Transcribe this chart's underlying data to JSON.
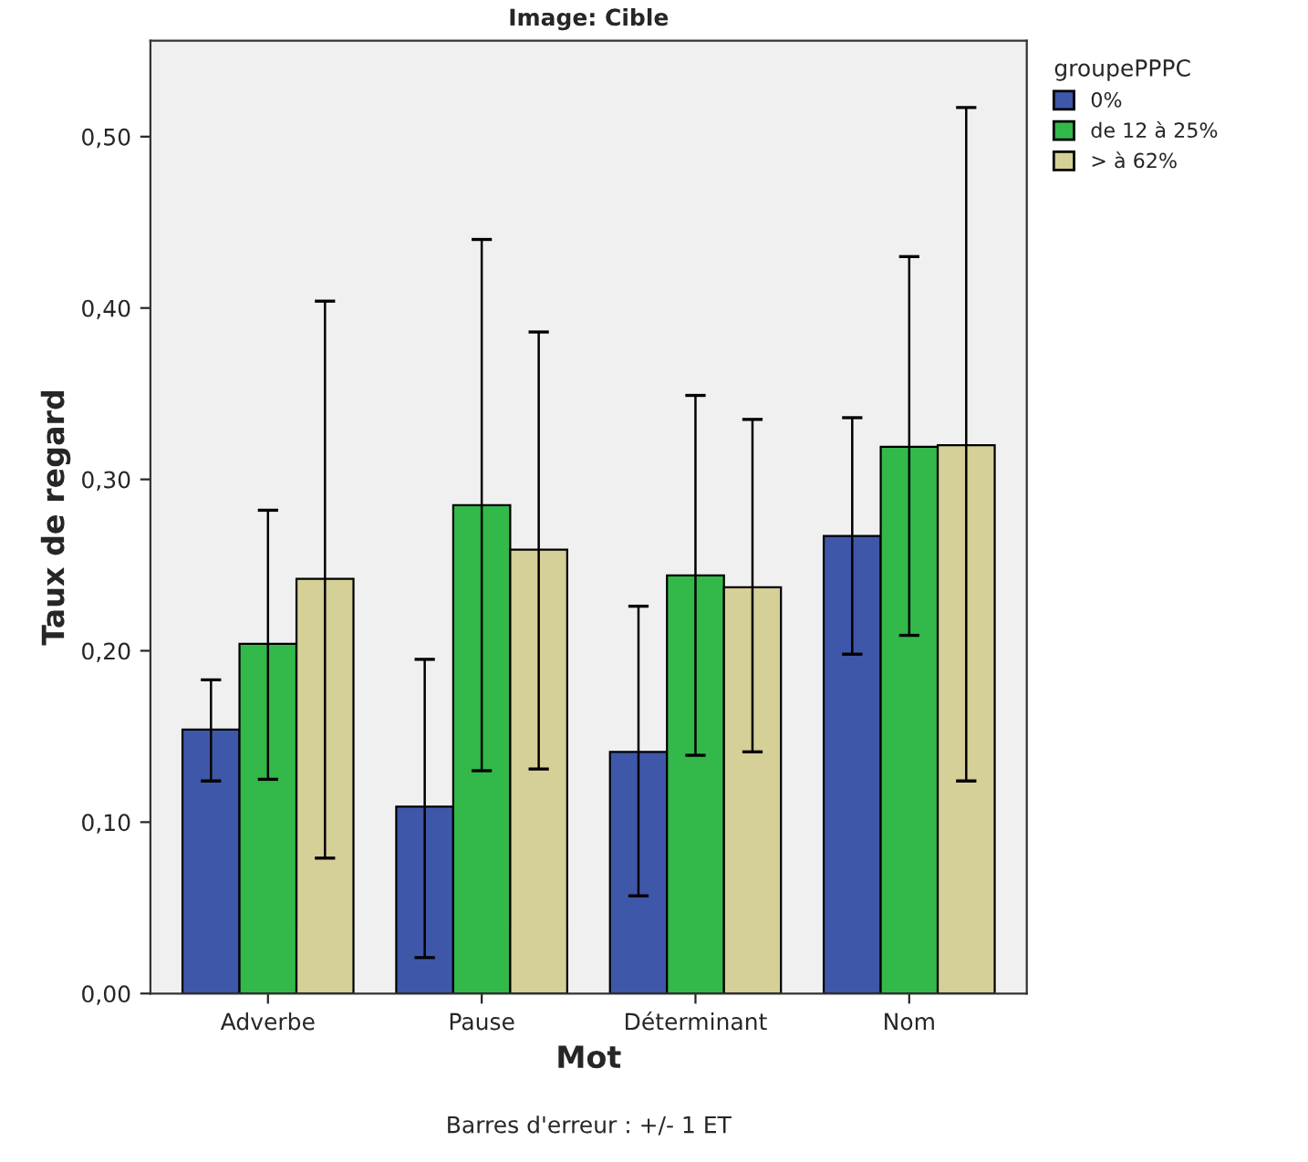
{
  "chart_data": {
    "type": "bar",
    "title": "Image: Cible",
    "xlabel": "Mot",
    "ylabel": "Taux de regard",
    "legend_title": "groupePPPC",
    "categories": [
      "Adverbe",
      "Pause",
      "Déterminant",
      "Nom"
    ],
    "series": [
      {
        "name": "0%",
        "color": "#3f57a8",
        "values": [
          0.154,
          0.109,
          0.141,
          0.267
        ],
        "errors": [
          [
            0.124,
            0.183
          ],
          [
            0.021,
            0.195
          ],
          [
            0.057,
            0.226
          ],
          [
            0.198,
            0.336
          ]
        ]
      },
      {
        "name": "de 12 à 25%",
        "color": "#33b84a",
        "values": [
          0.204,
          0.285,
          0.244,
          0.319
        ],
        "errors": [
          [
            0.125,
            0.282
          ],
          [
            0.13,
            0.44
          ],
          [
            0.139,
            0.349
          ],
          [
            0.209,
            0.43
          ]
        ]
      },
      {
        "name": "> à 62%",
        "color": "#d5cf98",
        "values": [
          0.242,
          0.259,
          0.237,
          0.32
        ],
        "errors": [
          [
            0.079,
            0.404
          ],
          [
            0.131,
            0.386
          ],
          [
            0.141,
            0.335
          ],
          [
            0.124,
            0.517
          ]
        ]
      }
    ],
    "ylim": [
      0,
      0.556
    ],
    "yticks": [
      {
        "value": 0,
        "label": "0,00"
      },
      {
        "value": 0.1,
        "label": "0,10"
      },
      {
        "value": 0.2,
        "label": "0,20"
      },
      {
        "value": 0.3,
        "label": "0,30"
      },
      {
        "value": 0.4,
        "label": "0,40"
      },
      {
        "value": 0.5,
        "label": "0,50"
      }
    ],
    "grid": false,
    "legend": "right",
    "annotations": [
      "Barres d'erreur : +/- 1 ET"
    ]
  }
}
